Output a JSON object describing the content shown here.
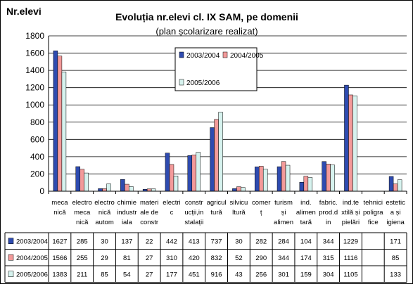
{
  "chart_data": {
    "type": "bar",
    "title": "Evoluția nr.elevi cl. IX SAM, pe domenii",
    "subtitle": "(plan școlarizare realizat)",
    "ylabel": "Nr.elevi",
    "ylim": [
      0,
      1800
    ],
    "yticks": [
      0,
      200,
      400,
      600,
      800,
      1000,
      1200,
      1400,
      1600,
      1800
    ],
    "grid": true,
    "legend_position": "top-center",
    "categories": [
      [
        "meca",
        "nică"
      ],
      [
        "electro",
        "meca",
        "nică"
      ],
      [
        "electro",
        "nică",
        "autom"
      ],
      [
        "chimie",
        "industr",
        "iala"
      ],
      [
        "materi",
        "ale de",
        "constr"
      ],
      [
        "electri",
        "c"
      ],
      [
        "constr",
        "ucții,in",
        "stalații"
      ],
      [
        "agricul",
        "tură"
      ],
      [
        "silvicu",
        "ltură"
      ],
      [
        "comer",
        "ț"
      ],
      [
        "turism",
        "și",
        "alimen"
      ],
      [
        "ind.",
        "alimen",
        "tară"
      ],
      [
        "fabric.",
        "prod.d",
        "in"
      ],
      [
        "ind.te",
        "xtilă și",
        "pielări"
      ],
      [
        "tehnici",
        "poligra",
        "fice"
      ],
      [
        "estetic",
        "a și",
        "igiena"
      ]
    ],
    "series": [
      {
        "name": "2003/2004",
        "color": "#2e4bb0",
        "values": [
          1627,
          285,
          30,
          137,
          22,
          442,
          413,
          737,
          30,
          282,
          284,
          104,
          344,
          1229,
          null,
          171
        ]
      },
      {
        "name": "2004/2005",
        "color": "#f39a9a",
        "values": [
          1566,
          255,
          29,
          81,
          27,
          310,
          420,
          832,
          52,
          290,
          344,
          174,
          315,
          1116,
          null,
          85
        ]
      },
      {
        "name": "2005/2006",
        "color": "#d6f2ee",
        "values": [
          1383,
          211,
          85,
          54,
          27,
          177,
          451,
          916,
          43,
          256,
          301,
          159,
          304,
          1105,
          null,
          133
        ]
      }
    ]
  }
}
